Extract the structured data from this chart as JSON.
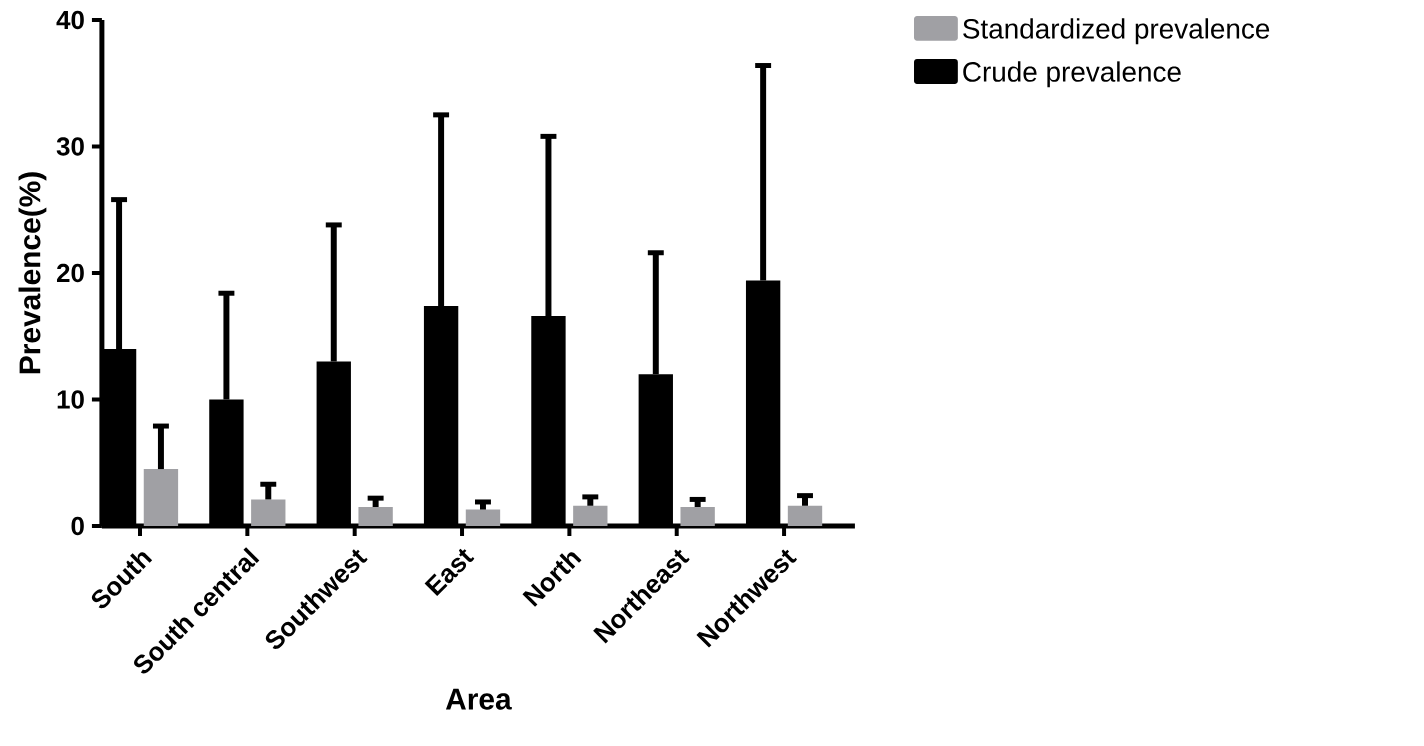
{
  "chart_data": {
    "type": "bar",
    "xlabel": "Area",
    "ylabel": "Prevalence(%)",
    "categories": [
      "South",
      "South central",
      "Southwest",
      "East",
      "North",
      "Northeast",
      "Northwest"
    ],
    "series": [
      {
        "name": "Crude prevalence",
        "color": "#000000",
        "values": [
          14.0,
          10.0,
          13.0,
          17.4,
          16.6,
          12.0,
          19.4
        ],
        "errors": [
          [
            14.0,
            25.8
          ],
          [
            10.0,
            18.4
          ],
          [
            13.0,
            23.8
          ],
          [
            17.4,
            32.5
          ],
          [
            16.6,
            30.8
          ],
          [
            12.0,
            21.6
          ],
          [
            19.4,
            36.4
          ]
        ]
      },
      {
        "name": "Standardized prevalence",
        "color": "#a0a0a4",
        "values": [
          4.5,
          2.1,
          1.5,
          1.3,
          1.6,
          1.5,
          1.6
        ],
        "errors": [
          [
            4.5,
            7.9
          ],
          [
            2.1,
            3.3
          ],
          [
            1.5,
            2.2
          ],
          [
            1.3,
            1.9
          ],
          [
            1.6,
            2.3
          ],
          [
            1.5,
            2.1
          ],
          [
            1.6,
            2.4
          ]
        ]
      }
    ],
    "ylim": [
      0,
      40
    ],
    "yticks": [
      0,
      10,
      20,
      30,
      40
    ],
    "grid": false,
    "legend": "top right"
  }
}
